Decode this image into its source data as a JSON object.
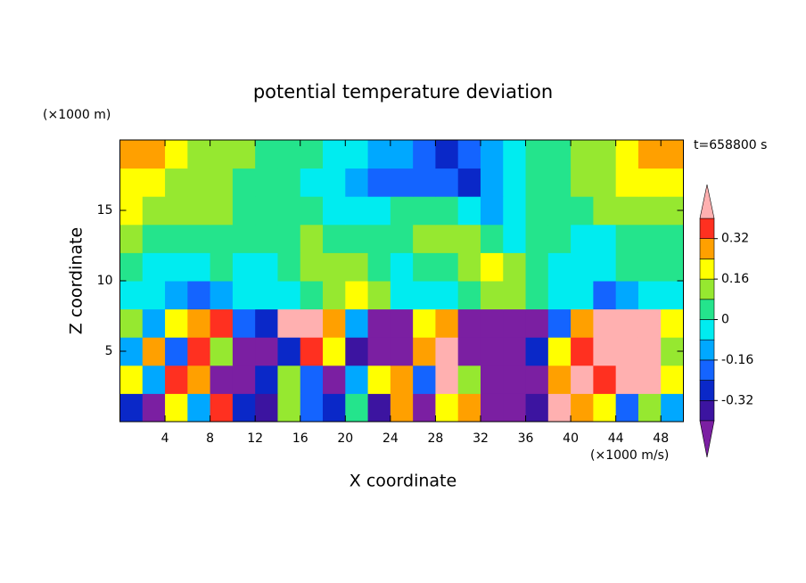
{
  "chart_data": {
    "type": "contour",
    "title": "potential temperature deviation",
    "xlabel": "X coordinate",
    "ylabel": "Z coordinate",
    "x_unit": "(×1000 m/s)",
    "y_unit": "(×1000 m)",
    "annotation": "t=658800 s",
    "xlim": [
      0,
      50
    ],
    "ylim": [
      0,
      20
    ],
    "xticks": [
      4,
      8,
      12,
      16,
      20,
      24,
      28,
      32,
      36,
      40,
      44,
      48
    ],
    "yticks": [
      5,
      10,
      15
    ],
    "x": [
      1,
      3,
      5,
      7,
      9,
      11,
      13,
      15,
      17,
      19,
      21,
      23,
      25,
      27,
      29,
      31,
      33,
      35,
      37,
      39,
      41,
      43,
      45,
      47,
      49
    ],
    "y": [
      1,
      3,
      5,
      7,
      9,
      11,
      13,
      15,
      17,
      19
    ],
    "z": [
      [
        -0.3,
        -0.46,
        0.2,
        -0.1,
        0.36,
        -0.3,
        -0.34,
        0.1,
        -0.2,
        -0.3,
        0.0,
        -0.4,
        0.3,
        -0.46,
        0.2,
        0.3,
        -0.5,
        -0.5,
        -0.4,
        0.44,
        0.3,
        0.2,
        -0.2,
        0.1,
        -0.1
      ],
      [
        0.2,
        -0.1,
        0.34,
        0.3,
        -0.44,
        -0.5,
        -0.3,
        0.1,
        -0.2,
        -0.44,
        -0.1,
        0.2,
        0.3,
        -0.2,
        0.44,
        0.1,
        -0.5,
        -0.5,
        -0.44,
        0.3,
        0.44,
        0.36,
        0.46,
        0.5,
        0.2
      ],
      [
        -0.1,
        0.3,
        -0.2,
        0.36,
        0.1,
        -0.44,
        -0.42,
        -0.3,
        0.38,
        0.2,
        -0.4,
        -0.5,
        -0.46,
        0.3,
        0.42,
        -0.48,
        -0.5,
        -0.5,
        -0.3,
        0.2,
        0.34,
        0.44,
        0.48,
        0.5,
        0.1
      ],
      [
        0.1,
        -0.1,
        0.2,
        0.3,
        0.36,
        -0.2,
        -0.3,
        0.42,
        0.44,
        0.3,
        -0.1,
        -0.5,
        -0.45,
        0.2,
        0.3,
        -0.5,
        -0.5,
        -0.5,
        -0.48,
        -0.2,
        0.3,
        0.44,
        0.46,
        0.5,
        0.2
      ],
      [
        -0.06,
        -0.08,
        -0.1,
        -0.18,
        -0.14,
        -0.08,
        -0.06,
        -0.04,
        0.06,
        0.12,
        0.18,
        0.08,
        -0.06,
        -0.08,
        -0.06,
        0.02,
        0.08,
        0.1,
        0.06,
        -0.04,
        -0.08,
        -0.2,
        -0.12,
        -0.08,
        -0.06
      ],
      [
        0.02,
        -0.02,
        -0.04,
        -0.02,
        0,
        -0.04,
        -0.06,
        0.02,
        0.1,
        0.14,
        0.12,
        0.04,
        -0.02,
        0.02,
        0.06,
        0.12,
        0.16,
        0.1,
        0.04,
        -0.02,
        -0.06,
        -0.04,
        0,
        0.02,
        0.04
      ],
      [
        0.08,
        0.06,
        0.04,
        0.02,
        0,
        0.02,
        0.04,
        0.06,
        0.08,
        0.06,
        0.02,
        0,
        0.06,
        0.1,
        0.12,
        0.08,
        0.02,
        -0.02,
        0.04,
        0.02,
        -0.04,
        -0.02,
        0.02,
        0.04,
        0.06
      ],
      [
        0.16,
        0.14,
        0.12,
        0.1,
        0.08,
        0.06,
        0.04,
        0.02,
        0,
        -0.02,
        -0.06,
        -0.04,
        0.02,
        0.06,
        0.04,
        -0.02,
        -0.1,
        -0.06,
        0,
        0.04,
        0.06,
        0.08,
        0.1,
        0.12,
        0.14
      ],
      [
        0.2,
        0.18,
        0.14,
        0.12,
        0.1,
        0.06,
        0.04,
        0.02,
        -0.02,
        -0.06,
        -0.1,
        -0.18,
        -0.24,
        -0.22,
        -0.2,
        -0.26,
        -0.14,
        -0.04,
        0.02,
        0.06,
        0.1,
        0.14,
        0.18,
        0.2,
        0.22
      ],
      [
        0.28,
        0.26,
        0.2,
        0.14,
        0.12,
        0.1,
        0.06,
        0.02,
        0,
        -0.04,
        -0.06,
        -0.1,
        -0.14,
        -0.2,
        -0.26,
        -0.22,
        -0.12,
        -0.06,
        0,
        0.04,
        0.1,
        0.14,
        0.2,
        0.26,
        0.28
      ]
    ],
    "levels": [
      -0.4,
      -0.32,
      -0.24,
      -0.16,
      -0.08,
      0,
      0.08,
      0.16,
      0.24,
      0.32,
      0.4
    ],
    "colors": [
      "#7b1fa2",
      "#3c14a0",
      "#0a28c8",
      "#1464ff",
      "#00a8ff",
      "#00ecf0",
      "#24e48c",
      "#96e830",
      "#ffff00",
      "#ffa000",
      "#ff3020",
      "#ffb0b0"
    ],
    "colorbar_ticks": [
      -0.32,
      -0.16,
      0,
      0.16,
      0.32
    ]
  }
}
